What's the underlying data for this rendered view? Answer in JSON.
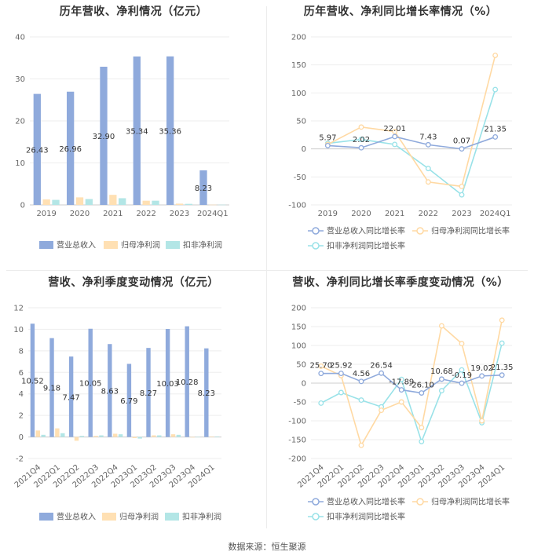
{
  "footer": "数据来源：恒生聚源",
  "colors": {
    "revenue": "#8faadc",
    "net_profit": "#ffe0b3",
    "deducted": "#b3e6e6",
    "line_revenue": "#8faadc",
    "line_net": "#ffd9a3",
    "line_deducted": "#99e2e8"
  },
  "chart_data": [
    {
      "id": "annual-bar",
      "type": "bar",
      "title": "历年营收、净利情况（亿元）",
      "categories": [
        "2019",
        "2020",
        "2021",
        "2022",
        "2023",
        "2024Q1"
      ],
      "ylim": [
        0,
        40
      ],
      "yticks": [
        0,
        10,
        20,
        30,
        40
      ],
      "series": [
        {
          "name": "营业总收入",
          "values": [
            26.43,
            26.96,
            32.9,
            35.34,
            35.36,
            8.23
          ],
          "labels": [
            "26.43",
            "26.96",
            "32.90",
            "35.34",
            "35.36",
            "8.23"
          ]
        },
        {
          "name": "归母净利润",
          "values": [
            1.3,
            1.8,
            2.4,
            1.0,
            0.3,
            0.05
          ]
        },
        {
          "name": "扣非净利润",
          "values": [
            1.2,
            1.4,
            1.6,
            1.0,
            0.25,
            0.05
          ]
        }
      ],
      "legend": "bottom"
    },
    {
      "id": "annual-line",
      "type": "line",
      "title": "历年营收、净利同比增长率情况（%）",
      "categories": [
        "2019",
        "2020",
        "2021",
        "2022",
        "2023",
        "2024Q1"
      ],
      "ylim": [
        -100,
        200
      ],
      "yticks": [
        -100,
        -50,
        0,
        50,
        100,
        150,
        200
      ],
      "series": [
        {
          "name": "营业总收入同比增长率",
          "values": [
            5.97,
            2.02,
            22.01,
            7.43,
            0.07,
            21.35
          ],
          "labels": [
            "5.97",
            "2.02",
            "22.01",
            "7.43",
            "0.07",
            "21.35"
          ]
        },
        {
          "name": "归母净利润同比增长率",
          "values": [
            8,
            39,
            31,
            -59,
            -67,
            167
          ]
        },
        {
          "name": "扣非净利润同比增长率",
          "values": [
            10,
            17,
            8,
            -35,
            -82,
            106
          ]
        }
      ],
      "legend": "bottom"
    },
    {
      "id": "quarter-bar",
      "type": "bar",
      "title": "营收、净利季度变动情况（亿元）",
      "categories": [
        "2021Q4",
        "2022Q1",
        "2022Q2",
        "2022Q3",
        "2022Q4",
        "2023Q1",
        "2023Q2",
        "2023Q3",
        "2023Q4",
        "2024Q1"
      ],
      "ylim": [
        -2,
        12
      ],
      "yticks": [
        -2,
        0,
        2,
        4,
        6,
        8,
        10,
        12
      ],
      "series": [
        {
          "name": "营业总收入",
          "values": [
            10.52,
            9.18,
            7.47,
            10.05,
            8.63,
            6.79,
            8.27,
            10.03,
            10.28,
            8.23
          ],
          "labels": [
            "10.52",
            "9.18",
            "7.47",
            "10.05",
            "8.63",
            "6.79",
            "8.27",
            "10.03",
            "10.28",
            "8.23"
          ]
        },
        {
          "name": "归母净利润",
          "values": [
            0.6,
            0.8,
            -0.35,
            0.1,
            0.3,
            -0.1,
            0.15,
            0.25,
            -0.05,
            0.05
          ]
        },
        {
          "name": "扣非净利润",
          "values": [
            0.2,
            0.35,
            0.1,
            0.15,
            0.25,
            -0.15,
            0.15,
            0.2,
            0.0,
            0.05
          ]
        }
      ],
      "legend": "bottom"
    },
    {
      "id": "quarter-line",
      "type": "line",
      "title": "营收、净利同比增长率季度变动情况（%）",
      "categories": [
        "2021Q4",
        "2022Q1",
        "2022Q2",
        "2022Q3",
        "2022Q4",
        "2023Q1",
        "2023Q2",
        "2023Q3",
        "2023Q4",
        "2024Q1"
      ],
      "ylim": [
        -200,
        200
      ],
      "yticks": [
        -200,
        -150,
        -100,
        -50,
        0,
        50,
        100,
        150,
        200
      ],
      "series": [
        {
          "name": "营业总收入同比增长率",
          "values": [
            25.7,
            25.92,
            4.56,
            26.54,
            -17.89,
            -26.1,
            10.68,
            -0.19,
            19.02,
            21.35
          ],
          "labels": [
            "25.70",
            "25.92",
            "4.56",
            "26.54",
            "-17.89",
            "-26.10",
            "10.68",
            "-0.19",
            "19.02",
            "21.35"
          ]
        },
        {
          "name": "归母净利润同比增长率",
          "values": [
            45,
            20,
            -165,
            -72,
            -50,
            -118,
            152,
            105,
            -100,
            167
          ]
        },
        {
          "name": "扣非净利润同比增长率",
          "values": [
            -53,
            -25,
            -45,
            -63,
            10,
            -155,
            -20,
            35,
            -105,
            106
          ]
        }
      ],
      "legend": "bottom"
    }
  ]
}
